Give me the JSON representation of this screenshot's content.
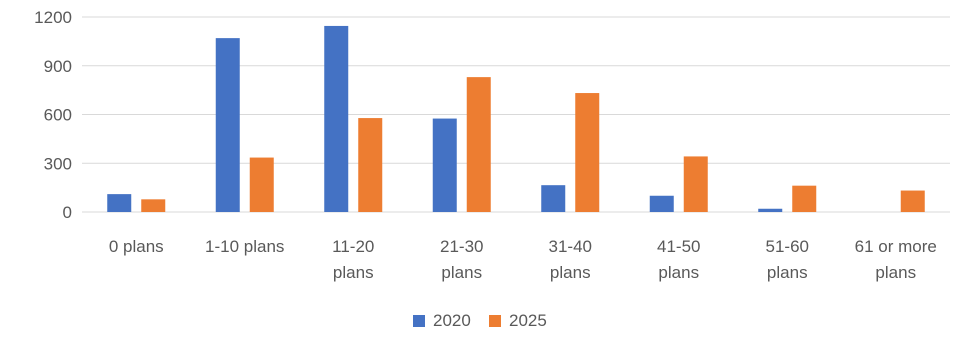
{
  "chart_data": {
    "type": "bar",
    "title": "",
    "xlabel": "",
    "ylabel": "",
    "categories": [
      [
        "0 plans"
      ],
      [
        "1-10 plans"
      ],
      [
        "11-20",
        "plans"
      ],
      [
        "21-30",
        "plans"
      ],
      [
        "31-40",
        "plans"
      ],
      [
        "41-50",
        "plans"
      ],
      [
        "51-60",
        "plans"
      ],
      [
        "61 or more",
        "plans"
      ]
    ],
    "series": [
      {
        "name": "2020",
        "color": "#4472c4",
        "values": [
          110,
          1070,
          1145,
          575,
          165,
          100,
          20,
          0
        ]
      },
      {
        "name": "2025",
        "color": "#ed7d31",
        "values": [
          78,
          335,
          578,
          830,
          732,
          342,
          162,
          132
        ]
      }
    ],
    "ylim": [
      0,
      1200
    ],
    "yticks": [
      0,
      300,
      600,
      900,
      1200
    ],
    "grid": true,
    "legend": "bottom-center"
  }
}
